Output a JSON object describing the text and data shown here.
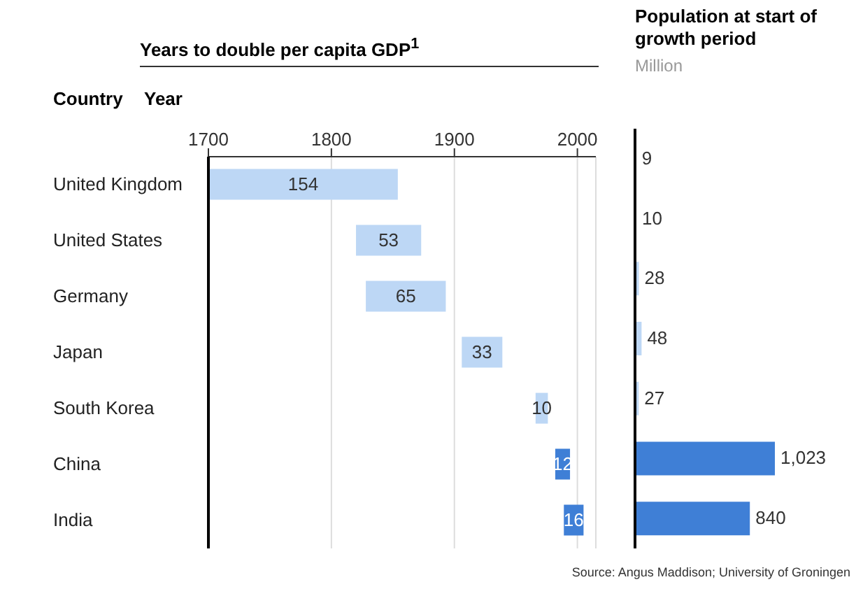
{
  "chart_data": [
    {
      "type": "bar",
      "orientation": "horizontal",
      "title": "Years to double per capita GDP$^{1}$",
      "xlabel": "Year",
      "ylabel": "Country",
      "categories": [
        "United Kingdom",
        "United States",
        "Germany",
        "Japan",
        "South Korea",
        "China",
        "India"
      ],
      "base": [
        1700,
        1820,
        1828,
        1906,
        1966,
        1982,
        1989
      ],
      "values": [
        154,
        53,
        65,
        33,
        10,
        12,
        16
      ],
      "colors": [
        "#bdd7f5",
        "#bdd7f5",
        "#bdd7f5",
        "#bdd7f5",
        "#bdd7f5",
        "#3f7fd6",
        "#3f7fd6"
      ],
      "xlim": [
        1700,
        2015
      ],
      "xticks": [
        1700,
        1800,
        1900,
        2000
      ],
      "grid": "x",
      "data_labels": true,
      "tick_labels": "x"
    },
    {
      "type": "bar",
      "orientation": "horizontal",
      "title": "Population at start of growth period",
      "subtitle": "Million",
      "categories": [
        null,
        null,
        null,
        null,
        null,
        null,
        null
      ],
      "values": [
        9,
        10,
        28,
        48,
        27,
        1023,
        840
      ],
      "value_labels": [
        "9",
        "10",
        "28",
        "48",
        "27",
        "1,023",
        "840"
      ],
      "colors": [
        "#bdd7f5",
        "#bdd7f5",
        "#bdd7f5",
        "#bdd7f5",
        "#bdd7f5",
        "#3f7fd6",
        "#3f7fd6"
      ],
      "tick_labels": false,
      "annotations": [
        "Source: Angus Maddison; University of Groningen"
      ]
    }
  ]
}
